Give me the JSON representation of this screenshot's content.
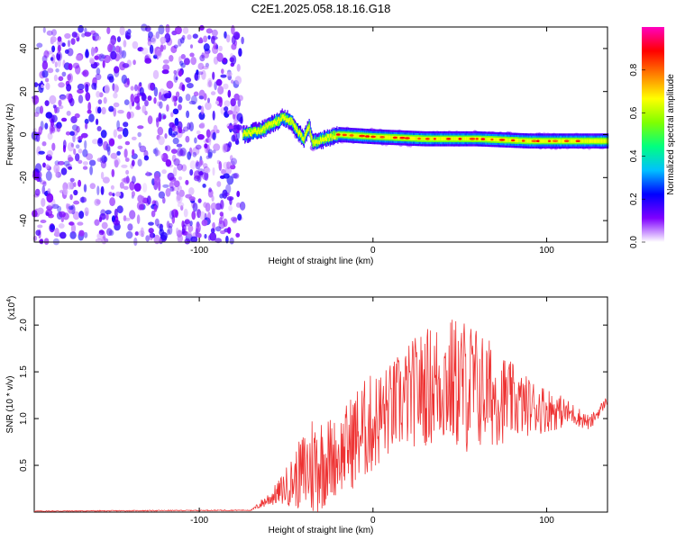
{
  "title": "C2E1.2025.058.18.16.G18",
  "chart_data": [
    {
      "type": "heatmap",
      "xlabel": "Height of straight line (km)",
      "ylabel": "Frequency (Hz)",
      "xlim": [
        -195,
        135
      ],
      "ylim": [
        -50,
        50
      ],
      "x_ticks": [
        -100,
        0,
        100
      ],
      "y_ticks": [
        -40,
        -20,
        0,
        20,
        40
      ],
      "colorbar": {
        "label": "Normalized spectral amplitude",
        "range": [
          0,
          1
        ],
        "ticks": [
          0.0,
          0.2,
          0.4,
          0.6,
          0.8
        ],
        "colors": [
          "#ffffff",
          "#7f00ff",
          "#0000ff",
          "#00c0ff",
          "#00ff80",
          "#80ff00",
          "#ffff00",
          "#ff8000",
          "#ff0000",
          "#ff00c0"
        ]
      },
      "noise_region": {
        "x": [
          -195,
          -75
        ],
        "freq": [
          -50,
          50
        ],
        "amplitude": "low (purple)"
      },
      "signal_track": [
        {
          "x": -75,
          "freq": 0
        },
        {
          "x": -65,
          "freq": 2
        },
        {
          "x": -58,
          "freq": 5
        },
        {
          "x": -52,
          "freq": 8
        },
        {
          "x": -47,
          "freq": 6
        },
        {
          "x": -44,
          "freq": 2
        },
        {
          "x": -40,
          "freq": -2
        },
        {
          "x": -37,
          "freq": 4
        },
        {
          "x": -35,
          "freq": -4
        },
        {
          "x": -28,
          "freq": -2
        },
        {
          "x": -20,
          "freq": 0
        },
        {
          "x": 0,
          "freq": -1
        },
        {
          "x": 30,
          "freq": -2
        },
        {
          "x": 60,
          "freq": -2
        },
        {
          "x": 90,
          "freq": -3
        },
        {
          "x": 135,
          "freq": -3
        }
      ]
    },
    {
      "type": "line",
      "xlabel": "Height of straight line (km)",
      "ylabel": "SNR (10 * v/v)",
      "y_multiplier": "(x10",
      "y_multiplier_exp": "4",
      "y_multiplier_close": ")",
      "xlim": [
        -195,
        135
      ],
      "ylim": [
        0,
        2.3
      ],
      "x_ticks": [
        -100,
        0,
        100
      ],
      "y_ticks": [
        0.5,
        1.0,
        1.5,
        2.0
      ],
      "color": "#ee3333",
      "envelope": [
        {
          "x": -195,
          "mean": 0.01,
          "amp": 0.005
        },
        {
          "x": -70,
          "mean": 0.02,
          "amp": 0.005
        },
        {
          "x": -55,
          "mean": 0.2,
          "amp": 0.12
        },
        {
          "x": -45,
          "mean": 0.35,
          "amp": 0.3
        },
        {
          "x": -35,
          "mean": 0.5,
          "amp": 0.6
        },
        {
          "x": -20,
          "mean": 0.6,
          "amp": 0.4
        },
        {
          "x": -10,
          "mean": 0.8,
          "amp": 0.55
        },
        {
          "x": 0,
          "mean": 0.95,
          "amp": 0.55
        },
        {
          "x": 10,
          "mean": 1.1,
          "amp": 0.5
        },
        {
          "x": 25,
          "mean": 1.3,
          "amp": 0.6
        },
        {
          "x": 40,
          "mean": 1.4,
          "amp": 0.7
        },
        {
          "x": 55,
          "mean": 1.35,
          "amp": 0.75
        },
        {
          "x": 70,
          "mean": 1.25,
          "amp": 0.55
        },
        {
          "x": 85,
          "mean": 1.15,
          "amp": 0.35
        },
        {
          "x": 100,
          "mean": 1.1,
          "amp": 0.25
        },
        {
          "x": 115,
          "mean": 1.05,
          "amp": 0.12
        },
        {
          "x": 125,
          "mean": 0.95,
          "amp": 0.08
        },
        {
          "x": 135,
          "mean": 1.2,
          "amp": 0.05
        }
      ]
    }
  ]
}
